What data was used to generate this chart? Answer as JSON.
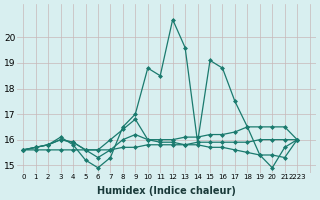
{
  "xlabel": "Humidex (Indice chaleur)",
  "bg_color": "#d8eff0",
  "grid_color": "#c8b8b8",
  "line_color": "#1a7a6e",
  "xlim": [
    -0.5,
    23.5
  ],
  "ylim": [
    14.7,
    21.3
  ],
  "yticks": [
    15,
    16,
    17,
    18,
    19,
    20
  ],
  "xticks": [
    0,
    1,
    2,
    3,
    4,
    5,
    6,
    7,
    8,
    9,
    10,
    11,
    12,
    13,
    14,
    15,
    16,
    17,
    18,
    19,
    20,
    21,
    22,
    23
  ],
  "xtick_labels": [
    "0",
    "1",
    "2",
    "3",
    "4",
    "5",
    "6",
    "7",
    "8",
    "9",
    "10",
    "11",
    "12",
    "13",
    "14",
    "15",
    "16",
    "17",
    "18",
    "19",
    "20",
    "21",
    "2223",
    ""
  ],
  "lines": [
    [
      15.6,
      15.7,
      15.8,
      16.1,
      15.8,
      15.2,
      14.9,
      15.3,
      16.5,
      17.0,
      18.8,
      18.5,
      20.7,
      19.6,
      15.9,
      19.1,
      18.8,
      17.5,
      16.5,
      15.4,
      14.9,
      15.7,
      16.0
    ],
    [
      15.6,
      15.7,
      15.8,
      16.0,
      15.9,
      15.6,
      15.6,
      16.0,
      16.4,
      16.8,
      16.0,
      16.0,
      16.0,
      16.1,
      16.1,
      16.2,
      16.2,
      16.3,
      16.5,
      16.5,
      16.5,
      16.5,
      16.0
    ],
    [
      15.6,
      15.7,
      15.8,
      16.0,
      15.9,
      15.6,
      15.3,
      15.6,
      16.0,
      16.2,
      16.0,
      15.9,
      15.9,
      15.8,
      15.8,
      15.7,
      15.7,
      15.6,
      15.5,
      15.4,
      15.4,
      15.3,
      16.0
    ],
    [
      15.6,
      15.6,
      15.6,
      15.6,
      15.6,
      15.6,
      15.6,
      15.6,
      15.7,
      15.7,
      15.8,
      15.8,
      15.8,
      15.8,
      15.9,
      15.9,
      15.9,
      15.9,
      15.9,
      16.0,
      16.0,
      16.0,
      16.0
    ]
  ]
}
